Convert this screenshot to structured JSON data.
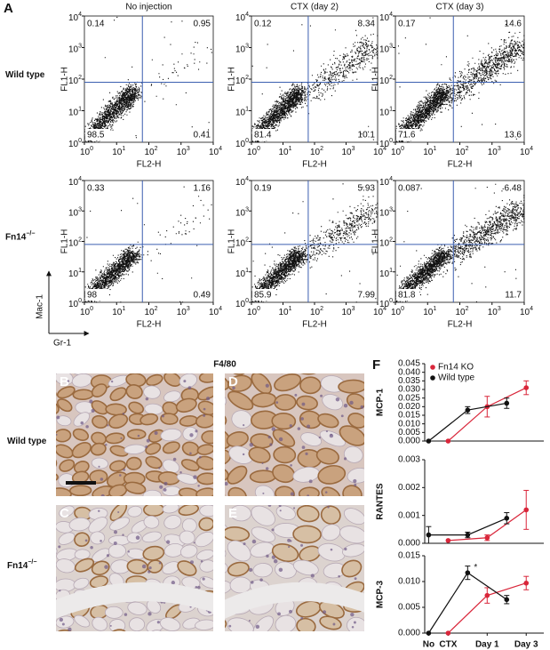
{
  "flow": {
    "panel_label": "A",
    "columns": [
      "No injection",
      "CTX (day 2)",
      "CTX (day 3)"
    ],
    "rows": [
      {
        "label": "Wild type",
        "plots": [
          {
            "quadrants": [
              0.14,
              0.95,
              98.5,
              0.41
            ]
          },
          {
            "quadrants": [
              0.12,
              8.34,
              81.4,
              10.1
            ]
          },
          {
            "quadrants": [
              0.17,
              14.6,
              71.6,
              13.6
            ]
          }
        ]
      },
      {
        "label": "Fn14",
        "label_sup": "−/−",
        "plots": [
          {
            "quadrants": [
              0.33,
              1.16,
              98,
              0.49
            ]
          },
          {
            "quadrants": [
              0.19,
              5.93,
              85.9,
              7.99
            ]
          },
          {
            "quadrants": [
              0.087,
              6.48,
              81.8,
              11.7
            ]
          }
        ]
      }
    ],
    "x_label": "FL2-H",
    "y_label": "FL1-H",
    "tick_base": "10",
    "tick_exponents": [
      0,
      1,
      2,
      3,
      4
    ],
    "arrow_y_label": "Mac-1",
    "arrow_x_label": "Gr-1"
  },
  "histology": {
    "title": "F4/80",
    "panels": [
      "B",
      "D",
      "C",
      "E"
    ],
    "rows": [
      {
        "label": "Wild type"
      },
      {
        "label": "Fn14",
        "label_sup": "−/−"
      }
    ]
  },
  "panel_f_label": "F",
  "chart_data": [
    {
      "type": "line",
      "y_label": "MCP-1",
      "xlim": [
        -0.2,
        5.9
      ],
      "ylim": [
        0,
        0.045
      ],
      "yticks": [
        {
          "value": 0,
          "label": "0.000"
        },
        {
          "value": 0.005,
          "label": "0.005"
        },
        {
          "value": 0.01,
          "label": "0.010"
        },
        {
          "value": 0.015,
          "label": "0.015"
        },
        {
          "value": 0.02,
          "label": "0.020"
        },
        {
          "value": 0.025,
          "label": "0.025"
        },
        {
          "value": 0.03,
          "label": "0.030"
        },
        {
          "value": 0.035,
          "label": "0.035"
        },
        {
          "value": 0.04,
          "label": "0.040"
        },
        {
          "value": 0.045,
          "label": "0.045"
        }
      ],
      "legend": "upper left",
      "series": [
        {
          "name": "Fn14 KO",
          "color": "#d9263a",
          "x": [
            1,
            3,
            5
          ],
          "values": [
            0,
            0.02,
            0.031
          ],
          "errors": [
            0,
            0.006,
            0.004
          ]
        },
        {
          "name": "Wild type",
          "color": "#111111",
          "x": [
            0,
            2,
            4
          ],
          "values": [
            0,
            0.018,
            0.022
          ],
          "errors": [
            0,
            0.002,
            0.003
          ]
        }
      ]
    },
    {
      "type": "line",
      "y_label": "RANTES",
      "xlim": [
        -0.2,
        5.9
      ],
      "ylim": [
        0,
        0.003
      ],
      "yticks": [
        {
          "value": 0,
          "label": "0.000"
        },
        {
          "value": 0.001,
          "label": "0.001"
        },
        {
          "value": 0.002,
          "label": "0.002"
        },
        {
          "value": 0.003,
          "label": "0.003"
        }
      ],
      "series": [
        {
          "color": "#d9263a",
          "x": [
            1,
            3,
            5
          ],
          "values": [
            0.0001,
            0.0002,
            0.0012
          ],
          "errors": [
            0,
            0.0001,
            0.0007
          ]
        },
        {
          "color": "#111111",
          "x": [
            0,
            2,
            4
          ],
          "values": [
            0.0003,
            0.0003,
            0.0009
          ],
          "errors": [
            0.0003,
            0.0001,
            0.0002
          ]
        }
      ]
    },
    {
      "type": "line",
      "y_label": "MCP-3",
      "xlim": [
        -0.2,
        5.9
      ],
      "ylim": [
        0,
        0.015
      ],
      "yticks": [
        {
          "value": 0,
          "label": "0.000"
        },
        {
          "value": 0.005,
          "label": "0.005"
        },
        {
          "value": 0.01,
          "label": "0.010"
        },
        {
          "value": 0.015,
          "label": "0.015"
        }
      ],
      "xticks": [
        {
          "value": 0,
          "label": "No"
        },
        {
          "value": 1,
          "label": "CTX"
        },
        {
          "value": 3,
          "label": "Day 1"
        },
        {
          "value": 5,
          "label": "Day 3"
        }
      ],
      "annotation": "*",
      "series": [
        {
          "color": "#d9263a",
          "x": [
            1,
            3,
            5
          ],
          "values": [
            0,
            0.0073,
            0.0097
          ],
          "errors": [
            0,
            0.0015,
            0.0013
          ]
        },
        {
          "color": "#111111",
          "x": [
            0,
            2,
            4
          ],
          "values": [
            0,
            0.0117,
            0.0065
          ],
          "errors": [
            0,
            0.0013,
            0.0008
          ]
        }
      ]
    }
  ]
}
